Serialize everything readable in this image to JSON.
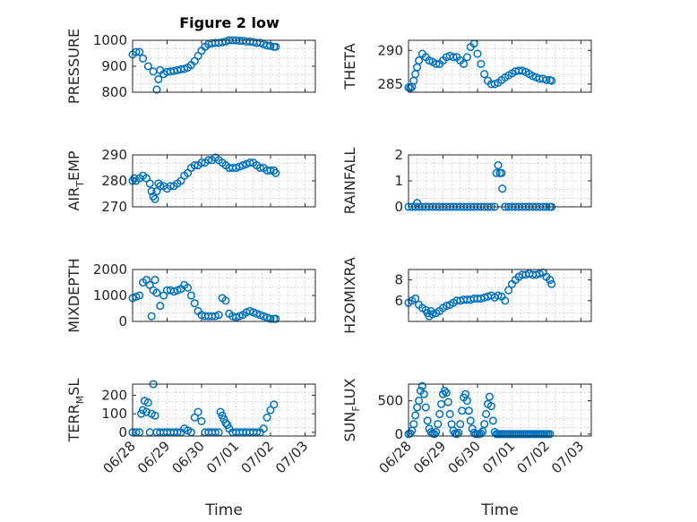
{
  "figure_title": "Figure 2 low",
  "colors": {
    "marker": "#0072BD"
  },
  "chart_data": [
    {
      "type": "scatter",
      "ylabel_parts": [
        "PRESSURE"
      ],
      "ylim": [
        800,
        1000
      ],
      "yticks": [
        "800",
        "900",
        "1000"
      ],
      "x": [
        0.0,
        0.1,
        0.2,
        0.3,
        0.45,
        0.6,
        0.7,
        0.75,
        0.8,
        0.9,
        1.0,
        1.1,
        1.2,
        1.3,
        1.4,
        1.5,
        1.6,
        1.7,
        1.8,
        1.9,
        2.0,
        2.1,
        2.2,
        2.3,
        2.4,
        2.5,
        2.6,
        2.7,
        2.8,
        2.9,
        3.0,
        3.1,
        3.2,
        3.3,
        3.4,
        3.5,
        3.6,
        3.7,
        3.8,
        3.9,
        4.0,
        4.1,
        4.15
      ],
      "y": [
        945,
        955,
        955,
        930,
        900,
        880,
        810,
        850,
        885,
        870,
        878,
        880,
        882,
        885,
        888,
        890,
        895,
        905,
        920,
        940,
        960,
        975,
        985,
        988,
        990,
        990,
        992,
        995,
        1000,
        1000,
        1000,
        998,
        998,
        995,
        995,
        993,
        990,
        990,
        985,
        980,
        978,
        975,
        975
      ]
    },
    {
      "type": "scatter",
      "ylabel_parts": [
        "THETA"
      ],
      "ylim": [
        283.8,
        291.5
      ],
      "yticks": [
        "285",
        "290"
      ],
      "x": [
        0.0,
        0.05,
        0.1,
        0.15,
        0.2,
        0.25,
        0.3,
        0.4,
        0.5,
        0.6,
        0.7,
        0.8,
        0.9,
        1.0,
        1.1,
        1.2,
        1.3,
        1.4,
        1.5,
        1.6,
        1.7,
        1.8,
        1.9,
        2.0,
        2.1,
        2.2,
        2.3,
        2.4,
        2.5,
        2.6,
        2.7,
        2.8,
        2.9,
        3.0,
        3.1,
        3.2,
        3.3,
        3.4,
        3.5,
        3.6,
        3.7,
        3.8,
        3.9,
        4.0,
        4.1,
        4.15
      ],
      "y": [
        284.5,
        284.4,
        284.6,
        285.5,
        286.5,
        287.5,
        288.5,
        289.5,
        289.0,
        288.5,
        288.3,
        288.0,
        288.0,
        288.5,
        289.0,
        289.2,
        289.0,
        289.0,
        288.5,
        288.0,
        289.0,
        290.5,
        291.0,
        289.5,
        288.0,
        286.5,
        285.5,
        285.0,
        285.0,
        285.2,
        285.6,
        286.0,
        286.3,
        286.6,
        286.9,
        287.0,
        287.0,
        286.8,
        286.5,
        286.2,
        286.0,
        285.8,
        285.8,
        285.6,
        285.6,
        285.5
      ]
    },
    {
      "type": "scatter",
      "ylabel_parts": [
        "AIR",
        "T",
        "EMP"
      ],
      "ylim": [
        270,
        290
      ],
      "yticks": [
        "270",
        "280",
        "290"
      ],
      "x": [
        0.0,
        0.05,
        0.1,
        0.2,
        0.3,
        0.4,
        0.5,
        0.55,
        0.6,
        0.65,
        0.7,
        0.75,
        0.8,
        0.9,
        1.0,
        1.1,
        1.2,
        1.3,
        1.4,
        1.5,
        1.6,
        1.7,
        1.8,
        1.9,
        2.0,
        2.1,
        2.2,
        2.3,
        2.4,
        2.5,
        2.6,
        2.7,
        2.8,
        2.9,
        3.0,
        3.1,
        3.2,
        3.3,
        3.4,
        3.5,
        3.6,
        3.7,
        3.8,
        3.9,
        4.0,
        4.1,
        4.15
      ],
      "y": [
        280,
        281,
        280,
        281,
        282,
        281,
        279,
        276,
        274,
        273,
        276,
        279,
        278,
        278,
        277,
        278,
        278,
        279,
        280,
        282,
        283,
        285,
        286,
        286,
        287,
        287,
        288,
        288,
        289,
        288,
        287,
        286,
        285,
        285,
        285,
        285.5,
        286,
        286.5,
        287,
        287,
        286,
        285,
        285,
        284,
        284,
        284,
        283
      ]
    },
    {
      "type": "scatter",
      "ylabel_parts": [
        "MIXDEPTH"
      ],
      "ylim": [
        0,
        2000
      ],
      "yticks": [
        "0",
        "1000",
        "2000"
      ],
      "x": [
        0.0,
        0.1,
        0.2,
        0.3,
        0.4,
        0.5,
        0.55,
        0.6,
        0.65,
        0.7,
        0.8,
        0.9,
        1.0,
        1.1,
        1.2,
        1.3,
        1.4,
        1.5,
        1.6,
        1.7,
        1.8,
        1.9,
        2.0,
        2.1,
        2.2,
        2.3,
        2.4,
        2.5,
        2.6,
        2.7,
        2.8,
        2.9,
        3.0,
        3.1,
        3.2,
        3.3,
        3.4,
        3.5,
        3.6,
        3.7,
        3.8,
        3.9,
        4.0,
        4.1,
        4.15
      ],
      "y": [
        900,
        950,
        1000,
        1500,
        1600,
        1400,
        200,
        1200,
        1600,
        1100,
        600,
        1000,
        1200,
        1200,
        1150,
        1200,
        1250,
        1400,
        1300,
        1000,
        700,
        400,
        250,
        200,
        200,
        200,
        200,
        250,
        900,
        800,
        300,
        200,
        150,
        200,
        250,
        350,
        400,
        350,
        300,
        250,
        200,
        150,
        100,
        100,
        100
      ]
    },
    {
      "type": "scatter",
      "ylabel_parts": [
        "H2OMIXRA"
      ],
      "ylim": [
        4,
        9
      ],
      "yticks": [
        "6",
        "8"
      ],
      "x": [
        0.0,
        0.1,
        0.2,
        0.3,
        0.4,
        0.5,
        0.55,
        0.6,
        0.65,
        0.7,
        0.8,
        0.9,
        1.0,
        1.1,
        1.2,
        1.3,
        1.4,
        1.5,
        1.6,
        1.7,
        1.8,
        1.9,
        2.0,
        2.1,
        2.2,
        2.3,
        2.4,
        2.5,
        2.6,
        2.7,
        2.8,
        2.9,
        3.0,
        3.1,
        3.2,
        3.3,
        3.4,
        3.5,
        3.6,
        3.7,
        3.8,
        3.9,
        4.0,
        4.1,
        4.15
      ],
      "y": [
        5.8,
        6.0,
        6.2,
        5.6,
        5.3,
        5.1,
        4.8,
        4.5,
        5.0,
        4.7,
        4.8,
        5.0,
        5.3,
        5.5,
        5.6,
        5.8,
        6.0,
        6.0,
        6.1,
        6.1,
        6.1,
        6.2,
        6.2,
        6.2,
        6.3,
        6.4,
        6.5,
        6.3,
        6.5,
        6.4,
        6.0,
        7.0,
        7.6,
        8.0,
        8.3,
        8.5,
        8.5,
        8.6,
        8.5,
        8.5,
        8.6,
        8.7,
        8.3,
        8.0,
        7.6
      ]
    },
    {
      "type": "scatter",
      "ylabel_parts": [
        "RAINFALL"
      ],
      "ylim": [
        0,
        2
      ],
      "yticks": [
        "0",
        "1",
        "2"
      ],
      "x": [
        0.0,
        0.1,
        0.2,
        0.25,
        0.3,
        0.4,
        0.5,
        0.6,
        0.7,
        0.8,
        0.9,
        1.0,
        1.1,
        1.2,
        1.3,
        1.4,
        1.5,
        1.6,
        1.7,
        1.8,
        1.9,
        2.0,
        2.1,
        2.2,
        2.3,
        2.4,
        2.5,
        2.55,
        2.6,
        2.65,
        2.7,
        2.72,
        2.8,
        2.9,
        3.0,
        3.1,
        3.2,
        3.3,
        3.4,
        3.5,
        3.6,
        3.7,
        3.8,
        3.9,
        4.0,
        4.1,
        4.15
      ],
      "y": [
        0,
        0,
        0,
        0.15,
        0,
        0,
        0,
        0,
        0,
        0,
        0,
        0,
        0,
        0,
        0,
        0,
        0,
        0,
        0,
        0,
        0,
        0,
        0,
        0,
        0,
        0,
        0,
        1.3,
        1.6,
        1.3,
        1.3,
        0.7,
        0,
        0,
        0,
        0,
        0,
        0,
        0,
        0,
        0,
        0,
        0,
        0,
        0,
        0,
        0
      ]
    },
    {
      "type": "scatter",
      "ylabel_parts": [
        "TERR",
        "M",
        "SL"
      ],
      "ylim": [
        -20,
        260
      ],
      "yticks": [
        "0",
        "100",
        "200"
      ],
      "x": [
        0.0,
        0.1,
        0.2,
        0.25,
        0.3,
        0.35,
        0.4,
        0.45,
        0.5,
        0.55,
        0.6,
        0.65,
        0.7,
        0.8,
        0.9,
        1.0,
        1.1,
        1.2,
        1.3,
        1.4,
        1.5,
        1.6,
        1.7,
        1.8,
        1.9,
        2.0,
        2.1,
        2.2,
        2.3,
        2.4,
        2.5,
        2.55,
        2.6,
        2.65,
        2.7,
        2.75,
        2.8,
        2.9,
        3.0,
        3.1,
        3.2,
        3.3,
        3.4,
        3.5,
        3.6,
        3.7,
        3.8,
        3.9,
        4.0,
        4.1
      ],
      "y": [
        0,
        0,
        0,
        100,
        120,
        170,
        110,
        160,
        0,
        100,
        260,
        90,
        0,
        0,
        0,
        0,
        0,
        0,
        0,
        0,
        20,
        10,
        0,
        80,
        110,
        60,
        0,
        0,
        0,
        0,
        0,
        110,
        90,
        70,
        50,
        40,
        20,
        0,
        0,
        0,
        0,
        0,
        0,
        0,
        0,
        0,
        20,
        80,
        120,
        150
      ]
    },
    {
      "type": "scatter",
      "ylabel_parts": [
        "SUN",
        "F",
        "LUX"
      ],
      "ylim": [
        -30,
        750
      ],
      "yticks": [
        "0",
        "500"
      ],
      "x": [
        0.0,
        0.05,
        0.1,
        0.15,
        0.2,
        0.25,
        0.3,
        0.35,
        0.4,
        0.45,
        0.5,
        0.55,
        0.6,
        0.65,
        0.7,
        0.75,
        0.8,
        0.85,
        0.9,
        0.95,
        1.0,
        1.05,
        1.1,
        1.15,
        1.2,
        1.25,
        1.3,
        1.35,
        1.4,
        1.45,
        1.5,
        1.55,
        1.6,
        1.65,
        1.7,
        1.75,
        1.8,
        1.85,
        1.9,
        1.95,
        2.0,
        2.05,
        2.1,
        2.15,
        2.2,
        2.25,
        2.3,
        2.35,
        2.4,
        2.45,
        2.5,
        2.55,
        2.6,
        2.65,
        2.7,
        2.75,
        2.8,
        2.85,
        2.9,
        2.95,
        3.0,
        3.05,
        3.1,
        3.15,
        3.2,
        3.25,
        3.3,
        3.35,
        3.4,
        3.45,
        3.5,
        3.55,
        3.6,
        3.65,
        3.7,
        3.75,
        3.8,
        3.85,
        3.9,
        3.95,
        4.0,
        4.05,
        4.1
      ],
      "y": [
        0,
        10,
        50,
        150,
        280,
        400,
        500,
        650,
        720,
        600,
        400,
        200,
        80,
        30,
        10,
        0,
        30,
        150,
        300,
        450,
        600,
        650,
        620,
        480,
        300,
        150,
        50,
        10,
        0,
        20,
        150,
        350,
        550,
        600,
        500,
        350,
        200,
        80,
        20,
        0,
        0,
        0,
        10,
        40,
        150,
        300,
        450,
        560,
        420,
        200,
        30,
        0,
        0,
        0,
        0,
        0,
        0,
        0,
        0,
        0,
        0,
        0,
        0,
        0,
        0,
        0,
        0,
        0,
        0,
        0,
        0,
        0,
        0,
        0,
        0,
        0,
        0,
        0,
        0,
        0,
        0,
        0,
        0
      ]
    }
  ],
  "shared_x": {
    "xlim": [
      0,
      5.3
    ],
    "tick_values": [
      0,
      1,
      2,
      3,
      4,
      5
    ],
    "tick_labels": [
      "06/28",
      "06/29",
      "06/30",
      "07/01",
      "07/02",
      "07/03"
    ],
    "xlabel": "Time"
  }
}
